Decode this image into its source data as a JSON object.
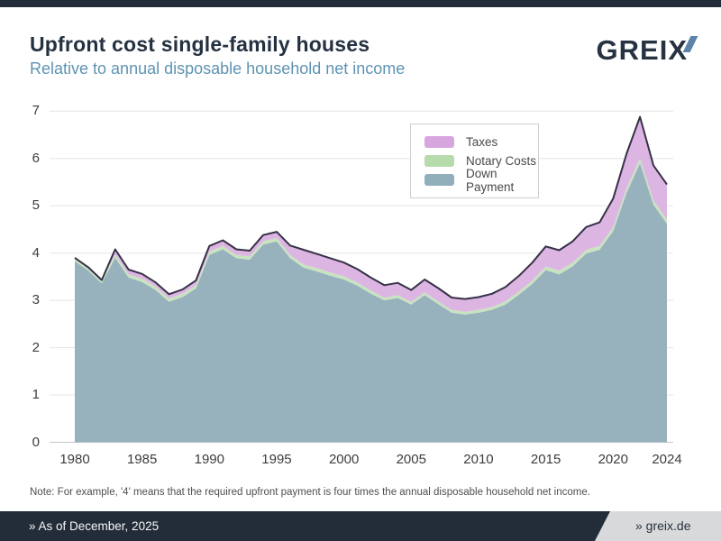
{
  "header": {
    "logo_text": "GREIX",
    "logo_dark_color": "#273341",
    "logo_accent_color": "#5b84a8"
  },
  "legend": {
    "items": [
      {
        "label": "Taxes",
        "swatch_color": "#d7a6de"
      },
      {
        "label": "Notary Costs",
        "swatch_color": "#b6dbad"
      },
      {
        "label": "Down Payment",
        "swatch_color": "#91aebb"
      }
    ]
  },
  "note": "Note: For example, '4' means that the required upfront payment is four times the annual disposable household net income.",
  "footer": {
    "left": "» As of December, 2025",
    "right": "» greix.de",
    "bar_color": "#232d39",
    "right_bg_color": "#d8d9da"
  },
  "chart_data": {
    "type": "area",
    "stacked": true,
    "title": "Upfront cost single-family houses",
    "subtitle": "Relative to annual disposable household net income",
    "xlabel": "",
    "ylabel": "",
    "ylim": [
      0,
      7
    ],
    "yticks": [
      0,
      1,
      2,
      3,
      4,
      5,
      6,
      7
    ],
    "xticks": [
      1980,
      1985,
      1990,
      1995,
      2000,
      2005,
      2010,
      2015,
      2020,
      2024
    ],
    "grid": "horizontal",
    "legend_position": "top-right",
    "line_color": "#363146",
    "grid_color": "#e5e5e7",
    "zero_line_color": "#c6c6c8",
    "x": [
      1980,
      1981,
      1982,
      1983,
      1984,
      1985,
      1986,
      1987,
      1988,
      1989,
      1990,
      1991,
      1992,
      1993,
      1994,
      1995,
      1996,
      1997,
      1998,
      1999,
      2000,
      2001,
      2002,
      2003,
      2004,
      2005,
      2006,
      2007,
      2008,
      2009,
      2010,
      2011,
      2012,
      2013,
      2014,
      2015,
      2016,
      2017,
      2018,
      2019,
      2020,
      2021,
      2022,
      2023,
      2024
    ],
    "series": [
      {
        "name": "Down Payment",
        "fill_color": "#97b1bd",
        "values": [
          3.83,
          3.63,
          3.36,
          3.9,
          3.48,
          3.39,
          3.22,
          2.97,
          3.07,
          3.25,
          3.96,
          4.08,
          3.89,
          3.86,
          4.18,
          4.25,
          3.89,
          3.69,
          3.61,
          3.52,
          3.44,
          3.31,
          3.14,
          3.0,
          3.05,
          2.91,
          3.11,
          2.92,
          2.74,
          2.7,
          2.74,
          2.8,
          2.91,
          3.12,
          3.35,
          3.64,
          3.55,
          3.72,
          3.99,
          4.07,
          4.46,
          5.27,
          5.9,
          5.02,
          4.62
        ]
      },
      {
        "name": "Notary Costs",
        "fill_color": "#c8e3c0",
        "values": [
          0.07,
          0.07,
          0.07,
          0.07,
          0.07,
          0.07,
          0.07,
          0.07,
          0.07,
          0.07,
          0.07,
          0.07,
          0.07,
          0.07,
          0.07,
          0.07,
          0.07,
          0.07,
          0.07,
          0.07,
          0.07,
          0.07,
          0.07,
          0.06,
          0.06,
          0.06,
          0.06,
          0.06,
          0.06,
          0.06,
          0.06,
          0.06,
          0.07,
          0.07,
          0.07,
          0.08,
          0.08,
          0.08,
          0.08,
          0.08,
          0.09,
          0.1,
          0.1,
          0.09,
          0.09
        ]
      },
      {
        "name": "Taxes",
        "fill_color": "#ddb5e3",
        "values": [
          0.0,
          0.0,
          0.0,
          0.11,
          0.1,
          0.1,
          0.09,
          0.09,
          0.09,
          0.1,
          0.12,
          0.12,
          0.12,
          0.12,
          0.13,
          0.13,
          0.2,
          0.31,
          0.3,
          0.3,
          0.29,
          0.28,
          0.27,
          0.26,
          0.26,
          0.25,
          0.27,
          0.28,
          0.26,
          0.27,
          0.27,
          0.28,
          0.3,
          0.33,
          0.38,
          0.42,
          0.43,
          0.45,
          0.48,
          0.5,
          0.6,
          0.73,
          0.88,
          0.74,
          0.74
        ]
      }
    ]
  }
}
